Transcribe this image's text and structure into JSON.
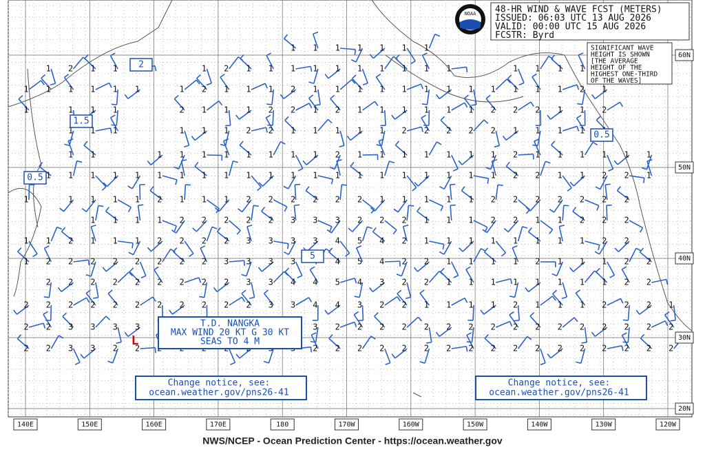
{
  "header": {
    "lines": [
      "48-HR WIND & WAVE FCST (METERS)",
      "ISSUED: 06:03 UTC 13 AUG 2026",
      "VALID:  00:00 UTC 15 AUG 2026",
      "FCSTR:  Byrd"
    ],
    "logo": "NOAA"
  },
  "note": {
    "lines": [
      "SIGNIFICANT WAVE",
      "HEIGHT IS SHOWN",
      "[THE AVERAGE",
      "HEIGHT OF THE",
      "HIGHEST ONE-THIRD",
      "OF THE WAVES]"
    ]
  },
  "storm": {
    "lines": [
      "T.D. NANGKA",
      "MAX WIND 20 KT G 30 KT",
      "SEAS TO 4 M"
    ]
  },
  "notices": [
    {
      "lines": [
        "Change notice, see:",
        "ocean.weather.gov/pns26-41"
      ]
    },
    {
      "lines": [
        "Change notice, see:",
        "ocean.weather.gov/pns26-41"
      ]
    }
  ],
  "longitudes": [
    "140E",
    "150E",
    "160E",
    "170E",
    "180",
    "170W",
    "160W",
    "150W",
    "140W",
    "130W",
    "120W"
  ],
  "latitudes": [
    "60N",
    "50N",
    "40N",
    "30N",
    "20N"
  ],
  "contour_labels": [
    "2",
    "1.5",
    "0.5",
    "5",
    "0.5"
  ],
  "footer": "NWS/NCEP - Ocean Prediction Center - https://ocean.weather.gov",
  "wave_heights": {
    "rows": [
      [
        null,
        null,
        null,
        null,
        null,
        null,
        null,
        null,
        null,
        null,
        null,
        null,
        1,
        1,
        1,
        1,
        1,
        1,
        1,
        null,
        null,
        null,
        null,
        null,
        null,
        null,
        null,
        null,
        null,
        null
      ],
      [
        null,
        1,
        2,
        1,
        1,
        2,
        null,
        null,
        1,
        2,
        1,
        1,
        1,
        1,
        1,
        1,
        1,
        1,
        1,
        1,
        null,
        null,
        1,
        1,
        1,
        1,
        null,
        null,
        null,
        null
      ],
      [
        1,
        1,
        1,
        1,
        1,
        1,
        null,
        1,
        2,
        1,
        1,
        1,
        2,
        1,
        1,
        1,
        1,
        1,
        1,
        1,
        1,
        1,
        1,
        1,
        1,
        2,
        1,
        null,
        null,
        null
      ],
      [
        1,
        null,
        1,
        1,
        1,
        null,
        null,
        2,
        1,
        1,
        1,
        2,
        2,
        1,
        2,
        1,
        1,
        1,
        1,
        1,
        1,
        2,
        2,
        2,
        1,
        1,
        2,
        null,
        null,
        null
      ],
      [
        null,
        null,
        1,
        1,
        1,
        null,
        null,
        1,
        1,
        1,
        2,
        2,
        1,
        1,
        1,
        1,
        1,
        2,
        2,
        2,
        2,
        2,
        1,
        1,
        1,
        1,
        1,
        null,
        null,
        null
      ],
      [
        null,
        null,
        1,
        1,
        null,
        null,
        1,
        1,
        1,
        1,
        1,
        1,
        1,
        1,
        2,
        1,
        1,
        1,
        1,
        1,
        1,
        1,
        2,
        1,
        1,
        1,
        1,
        1,
        1,
        null
      ],
      [
        null,
        1,
        1,
        1,
        1,
        1,
        1,
        1,
        1,
        1,
        1,
        1,
        1,
        1,
        1,
        1,
        1,
        1,
        1,
        1,
        1,
        1,
        2,
        2,
        1,
        1,
        2,
        2,
        1,
        null
      ],
      [
        1,
        null,
        1,
        1,
        1,
        1,
        2,
        1,
        1,
        1,
        2,
        2,
        2,
        2,
        2,
        2,
        1,
        1,
        1,
        1,
        1,
        2,
        2,
        2,
        2,
        2,
        2,
        2,
        null,
        null
      ],
      [
        null,
        null,
        null,
        1,
        1,
        1,
        1,
        2,
        2,
        2,
        2,
        2,
        3,
        3,
        3,
        2,
        2,
        2,
        1,
        1,
        1,
        2,
        2,
        1,
        1,
        2,
        2,
        2,
        null,
        null
      ],
      [
        1,
        1,
        2,
        1,
        1,
        1,
        2,
        2,
        2,
        2,
        3,
        3,
        3,
        3,
        4,
        5,
        4,
        2,
        1,
        1,
        1,
        1,
        1,
        1,
        1,
        1,
        2,
        2,
        null,
        null
      ],
      [
        1,
        2,
        2,
        2,
        2,
        2,
        2,
        2,
        2,
        3,
        3,
        3,
        3,
        4,
        4,
        5,
        4,
        2,
        2,
        1,
        1,
        1,
        1,
        2,
        1,
        1,
        1,
        2,
        2,
        null
      ],
      [
        null,
        2,
        2,
        2,
        2,
        2,
        2,
        2,
        2,
        2,
        3,
        3,
        4,
        4,
        5,
        4,
        3,
        2,
        2,
        1,
        1,
        1,
        1,
        1,
        1,
        1,
        1,
        2,
        2,
        null
      ],
      [
        2,
        2,
        2,
        2,
        2,
        2,
        2,
        2,
        2,
        2,
        2,
        3,
        3,
        4,
        4,
        3,
        2,
        2,
        1,
        1,
        1,
        1,
        2,
        1,
        1,
        1,
        2,
        2,
        2,
        1
      ],
      [
        2,
        2,
        3,
        3,
        3,
        3,
        null,
        null,
        null,
        null,
        null,
        null,
        null,
        3,
        2,
        2,
        2,
        2,
        2,
        2,
        2,
        2,
        2,
        2,
        2,
        2,
        2,
        2,
        2,
        2
      ],
      [
        2,
        2,
        3,
        3,
        2,
        2,
        2,
        2,
        2,
        2,
        2,
        3,
        3,
        2,
        2,
        2,
        2,
        2,
        2,
        2,
        2,
        2,
        2,
        2,
        2,
        2,
        2,
        2,
        2,
        2
      ]
    ]
  }
}
